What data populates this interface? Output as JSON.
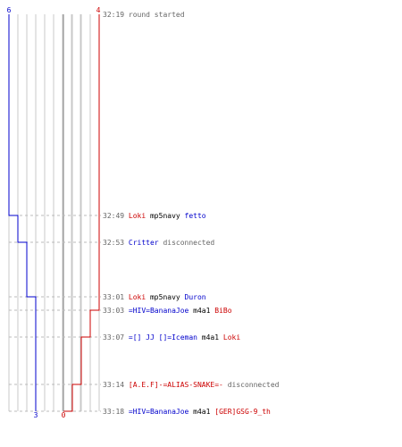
{
  "graph": {
    "top_labels": {
      "left": "6",
      "right": "4"
    },
    "bottom_labels": {
      "left": "3",
      "right": "0"
    },
    "colors": {
      "blue": "#0000cc",
      "red": "#cc0000",
      "grid": "#c8c8c8",
      "center": "#808080",
      "dash": "#bbbbbb",
      "time": "#666666",
      "plain": "#000000"
    }
  },
  "events": [
    {
      "time": "32:19",
      "parts": [
        {
          "text": "round started",
          "color": "time"
        }
      ]
    },
    {
      "time": "32:49",
      "parts": [
        {
          "text": "Loki",
          "color": "red"
        },
        {
          "text": " mp5navy ",
          "color": "plain"
        },
        {
          "text": "fetto",
          "color": "blue"
        }
      ]
    },
    {
      "time": "32:53",
      "parts": [
        {
          "text": "Critter",
          "color": "blue"
        },
        {
          "text": " disconnected",
          "color": "time"
        }
      ]
    },
    {
      "time": "33:01",
      "parts": [
        {
          "text": "Loki",
          "color": "red"
        },
        {
          "text": " mp5navy ",
          "color": "plain"
        },
        {
          "text": "Duron",
          "color": "blue"
        }
      ]
    },
    {
      "time": "33:03",
      "parts": [
        {
          "text": "=HIV=BananaJoe",
          "color": "blue"
        },
        {
          "text": " m4a1 ",
          "color": "plain"
        },
        {
          "text": "BiBo",
          "color": "red"
        }
      ]
    },
    {
      "time": "33:07",
      "parts": [
        {
          "text": "=[] JJ []=Iceman",
          "color": "blue"
        },
        {
          "text": " m4a1 ",
          "color": "plain"
        },
        {
          "text": "Loki",
          "color": "red"
        }
      ]
    },
    {
      "time": "33:14",
      "parts": [
        {
          "text": "[A.E.F]-=ALIAS-SNAKE=-",
          "color": "red"
        },
        {
          "text": " disconnected",
          "color": "time"
        }
      ]
    },
    {
      "time": "33:18",
      "parts": [
        {
          "text": "=HIV=BananaJoe",
          "color": "blue"
        },
        {
          "text": " m4a1 ",
          "color": "plain"
        },
        {
          "text": "[GER]GSG-9_th",
          "color": "red"
        }
      ]
    }
  ],
  "alive_counts": {
    "blue": [
      6,
      5,
      4,
      3,
      3,
      3,
      3,
      3
    ],
    "red": [
      4,
      4,
      4,
      4,
      3,
      2,
      1,
      0
    ]
  }
}
